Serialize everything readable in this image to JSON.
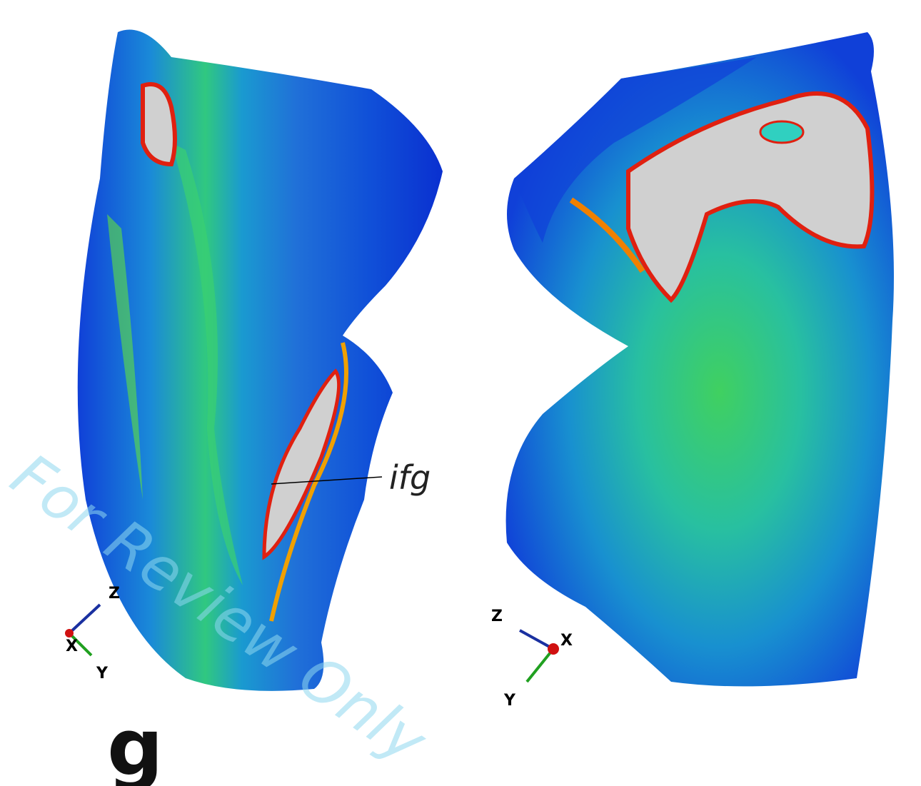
{
  "figure": {
    "panel_label": "g",
    "annotation": "ifg",
    "watermark": "For Review Only",
    "left_axes": {
      "z": "Z",
      "x": "X",
      "y": "Y"
    },
    "right_axes": {
      "z": "Z",
      "x": "X",
      "y": "Y"
    }
  }
}
